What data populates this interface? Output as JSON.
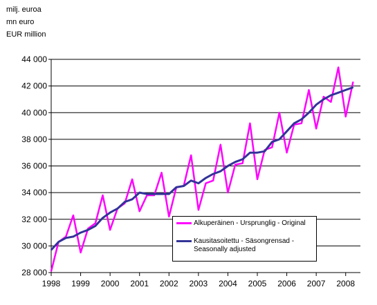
{
  "units": [
    "milj. euroa",
    "mn euro",
    "EUR million"
  ],
  "chart_data": {
    "type": "line",
    "ylim": [
      28000,
      44000
    ],
    "y_ticks": [
      28000,
      30000,
      32000,
      34000,
      36000,
      38000,
      40000,
      42000,
      44000
    ],
    "y_tick_labels": [
      "28 000",
      "30 000",
      "32 000",
      "34 000",
      "36 000",
      "38 000",
      "40 000",
      "42 000",
      "44 000"
    ],
    "x_tick_labels": [
      "1998",
      "1999",
      "2000",
      "2001",
      "2002",
      "2003",
      "2004",
      "2005",
      "2006",
      "2007",
      "2008"
    ],
    "xlim": [
      1998.0,
      2008.5
    ],
    "grid": "horizontal",
    "legend_position": "bottom-right",
    "series": [
      {
        "name": "Alkuperäinen - Ursprunglig - Original",
        "color": "#ff00ff",
        "x": [
          1998.0,
          1998.25,
          1998.5,
          1998.75,
          1999.0,
          1999.25,
          1999.5,
          1999.75,
          2000.0,
          2000.25,
          2000.5,
          2000.75,
          2001.0,
          2001.25,
          2001.5,
          2001.75,
          2002.0,
          2002.25,
          2002.5,
          2002.75,
          2003.0,
          2003.25,
          2003.5,
          2003.75,
          2004.0,
          2004.25,
          2004.5,
          2004.75,
          2005.0,
          2005.25,
          2005.5,
          2005.75,
          2006.0,
          2006.25,
          2006.5,
          2006.75,
          2007.0,
          2007.25,
          2007.5,
          2007.75,
          2008.0,
          2008.25
        ],
        "values": [
          28100,
          30300,
          30700,
          32300,
          29500,
          31300,
          31700,
          33800,
          31200,
          32800,
          33200,
          35000,
          32600,
          33800,
          33800,
          35500,
          32200,
          34400,
          34500,
          36800,
          32700,
          34700,
          34900,
          37600,
          34000,
          36100,
          36200,
          39200,
          35000,
          37200,
          37400,
          40000,
          37000,
          39100,
          39200,
          41700,
          38800,
          41200,
          40800,
          43400,
          39700,
          42300
        ]
      },
      {
        "name": "Kausitasoitettu - Säsongrensad - Seasonally adjusted",
        "color": "#333399",
        "x": [
          1998.0,
          1998.25,
          1998.5,
          1998.75,
          1999.0,
          1999.25,
          1999.5,
          1999.75,
          2000.0,
          2000.25,
          2000.5,
          2000.75,
          2001.0,
          2001.25,
          2001.5,
          2001.75,
          2002.0,
          2002.25,
          2002.5,
          2002.75,
          2003.0,
          2003.25,
          2003.5,
          2003.75,
          2004.0,
          2004.25,
          2004.5,
          2004.75,
          2005.0,
          2005.25,
          2005.5,
          2005.75,
          2006.0,
          2006.25,
          2006.5,
          2006.75,
          2007.0,
          2007.25,
          2007.5,
          2007.75,
          2008.0,
          2008.25
        ],
        "values": [
          29700,
          30300,
          30600,
          30700,
          31000,
          31200,
          31500,
          32100,
          32500,
          32800,
          33300,
          33500,
          34000,
          33900,
          33900,
          33900,
          33900,
          34400,
          34500,
          34900,
          34700,
          35100,
          35400,
          35600,
          36000,
          36300,
          36500,
          37000,
          37000,
          37100,
          37800,
          38000,
          38600,
          39200,
          39500,
          40000,
          40600,
          41000,
          41300,
          41500,
          41700,
          41900
        ]
      }
    ]
  }
}
